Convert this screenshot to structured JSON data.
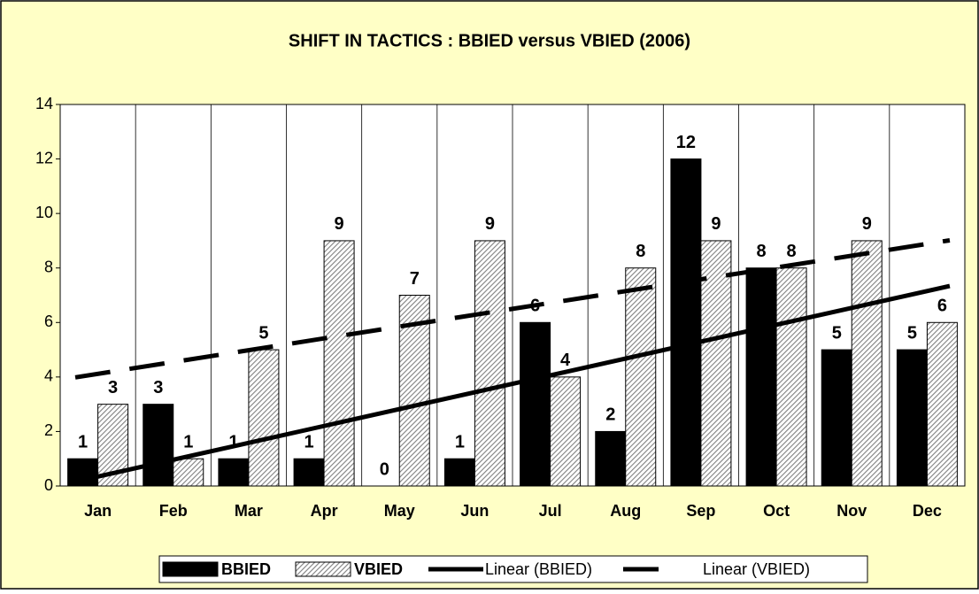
{
  "chart_data": {
    "type": "bar",
    "title": "SHIFT IN TACTICS : BBIED versus VBIED (2006)",
    "categories": [
      "Jan",
      "Feb",
      "Mar",
      "Apr",
      "May",
      "Jun",
      "Jul",
      "Aug",
      "Sep",
      "Oct",
      "Nov",
      "Dec"
    ],
    "series": [
      {
        "name": "BBIED",
        "color": "#000000",
        "fill": "solid",
        "values": [
          1,
          3,
          1,
          1,
          0,
          1,
          6,
          2,
          12,
          8,
          5,
          5
        ],
        "trendline": {
          "name": "Linear (BBIED)",
          "type": "linear",
          "style": "solid"
        }
      },
      {
        "name": "VBIED",
        "color": "#808080",
        "fill": "hatched",
        "values": [
          3,
          1,
          5,
          9,
          7,
          9,
          4,
          8,
          9,
          8,
          9,
          6
        ],
        "trendline": {
          "name": "Linear (VBIED)",
          "type": "linear",
          "style": "dashed"
        }
      }
    ],
    "ylim": [
      0,
      14
    ],
    "yticks": [
      0,
      2,
      4,
      6,
      8,
      10,
      12,
      14
    ],
    "grid": "x",
    "legend": "bottom"
  }
}
